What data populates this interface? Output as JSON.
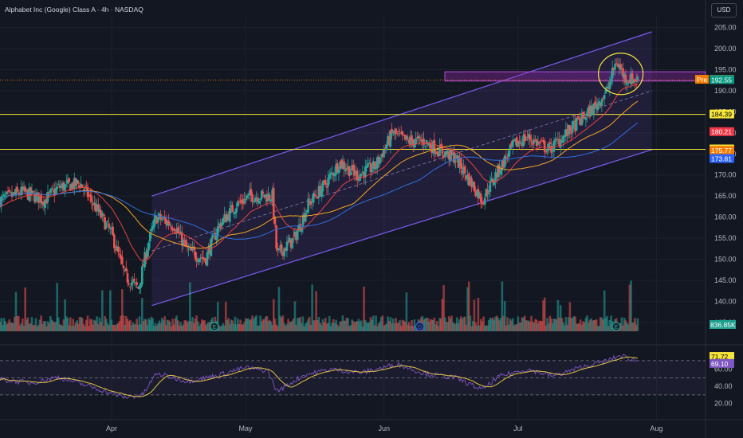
{
  "header": {
    "title": "Alphabet Inc (Google) Class A · 4h · NASDAQ",
    "currency_button": "USD"
  },
  "chart_data": [
    {
      "type": "candlestick",
      "title": "Alphabet Inc (Google) Class A · 4h · NASDAQ",
      "x_range": [
        "2025-03-07",
        "2025-08-12"
      ],
      "x_ticks": [
        {
          "label": "Apr",
          "date": "2025-04-01"
        },
        {
          "label": "May",
          "date": "2025-05-01"
        },
        {
          "label": "Jun",
          "date": "2025-06-01"
        },
        {
          "label": "Jul",
          "date": "2025-07-01"
        },
        {
          "label": "Aug",
          "date": "2025-08-01"
        }
      ],
      "y_ticks": [
        135,
        140,
        145,
        150,
        155,
        160,
        165,
        170,
        175,
        180,
        185,
        190,
        195,
        200,
        205
      ],
      "ylim": [
        131,
        207
      ],
      "colors": {
        "up": "#26a69a",
        "down": "#ef5350",
        "channel": "#7b5cf2",
        "hline": "#f5e63b",
        "ema_red": "#e8423f",
        "sma_orange": "#f5a623",
        "sma_blue": "#2f6fde"
      },
      "price_path": [
        [
          "2025-03-07",
          164
        ],
        [
          "2025-03-12",
          166
        ],
        [
          "2025-03-17",
          164
        ],
        [
          "2025-03-20",
          167
        ],
        [
          "2025-03-25",
          168
        ],
        [
          "2025-03-28",
          163
        ],
        [
          "2025-04-01",
          156
        ],
        [
          "2025-04-04",
          146
        ],
        [
          "2025-04-07",
          143
        ],
        [
          "2025-04-09",
          153
        ],
        [
          "2025-04-11",
          160
        ],
        [
          "2025-04-15",
          158
        ],
        [
          "2025-04-18",
          152
        ],
        [
          "2025-04-22",
          150
        ],
        [
          "2025-04-25",
          158
        ],
        [
          "2025-04-29",
          163
        ],
        [
          "2025-05-02",
          165
        ],
        [
          "2025-05-07",
          165
        ],
        [
          "2025-05-08",
          151
        ],
        [
          "2025-05-12",
          155
        ],
        [
          "2025-05-15",
          163
        ],
        [
          "2025-05-19",
          168
        ],
        [
          "2025-05-22",
          173
        ],
        [
          "2025-05-26",
          170
        ],
        [
          "2025-05-30",
          172
        ],
        [
          "2025-06-03",
          180
        ],
        [
          "2025-06-06",
          178
        ],
        [
          "2025-06-10",
          178
        ],
        [
          "2025-06-13",
          176
        ],
        [
          "2025-06-17",
          174
        ],
        [
          "2025-06-20",
          169
        ],
        [
          "2025-06-23",
          164
        ],
        [
          "2025-06-26",
          170
        ],
        [
          "2025-06-30",
          177
        ],
        [
          "2025-07-03",
          179
        ],
        [
          "2025-07-08",
          176
        ],
        [
          "2025-07-11",
          179
        ],
        [
          "2025-07-15",
          183
        ],
        [
          "2025-07-18",
          186
        ],
        [
          "2025-07-21",
          190
        ],
        [
          "2025-07-23",
          197
        ],
        [
          "2025-07-25",
          193
        ],
        [
          "2025-07-28",
          192.6
        ]
      ],
      "volume": {
        "last_label": "836.85K"
      },
      "overlays": {
        "channel": {
          "upper": [
            [
              "2025-04-10",
              165
            ],
            [
              "2025-07-31",
              204
            ]
          ],
          "lower": [
            [
              "2025-04-10",
              139
            ],
            [
              "2025-07-31",
              176
            ]
          ]
        },
        "pre_zone": [
          194.5,
          192.3
        ],
        "horizontal_lines": [
          184.39,
          176.1
        ],
        "dotted_price_line": 192.55
      },
      "price_tags": [
        {
          "label": "Pre",
          "value": "192.62",
          "y": 192.62,
          "color": "#f57c00"
        },
        {
          "value": "192.55",
          "y": 192.55,
          "color": "#089981"
        },
        {
          "value": "184.39",
          "y": 184.39,
          "color": "#f5e63b"
        },
        {
          "value": "180.21",
          "y": 180.21,
          "color": "#f23645"
        },
        {
          "value": "176.10",
          "y": 176.1,
          "color": "#f5e63b"
        },
        {
          "value": "175.77",
          "y": 175.77,
          "color": "#f57c00"
        },
        {
          "value": "173.81",
          "y": 173.81,
          "color": "#2962ff"
        }
      ]
    },
    {
      "type": "line",
      "title": "",
      "y_ticks": [
        20,
        40,
        60
      ],
      "ylim": [
        15,
        82
      ],
      "levels": [
        70,
        50,
        30
      ],
      "value_tags": [
        {
          "value": "71.72",
          "y": 71.72,
          "color": "#f5e63b"
        },
        {
          "value": "69.10",
          "y": 69.1,
          "color": "#7e57c2"
        }
      ],
      "rsi_path": [
        [
          "2025-03-07",
          48
        ],
        [
          "2025-03-14",
          44
        ],
        [
          "2025-03-20",
          51
        ],
        [
          "2025-03-27",
          40
        ],
        [
          "2025-04-04",
          27
        ],
        [
          "2025-04-08",
          30
        ],
        [
          "2025-04-11",
          55
        ],
        [
          "2025-04-18",
          46
        ],
        [
          "2025-04-24",
          52
        ],
        [
          "2025-05-01",
          62
        ],
        [
          "2025-05-06",
          58
        ],
        [
          "2025-05-08",
          34
        ],
        [
          "2025-05-14",
          53
        ],
        [
          "2025-05-20",
          60
        ],
        [
          "2025-05-27",
          56
        ],
        [
          "2025-06-04",
          66
        ],
        [
          "2025-06-10",
          55
        ],
        [
          "2025-06-17",
          50
        ],
        [
          "2025-06-23",
          36
        ],
        [
          "2025-06-27",
          52
        ],
        [
          "2025-07-03",
          60
        ],
        [
          "2025-07-09",
          52
        ],
        [
          "2025-07-15",
          62
        ],
        [
          "2025-07-21",
          70
        ],
        [
          "2025-07-24",
          76
        ],
        [
          "2025-07-28",
          69.1
        ]
      ]
    }
  ]
}
